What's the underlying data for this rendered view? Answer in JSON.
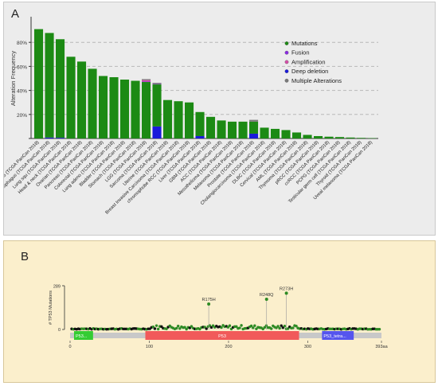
{
  "panel_a": {
    "letter": "A"
  },
  "panel_b": {
    "letter": "B"
  },
  "colors": {
    "mutation": "#1c8a14",
    "fusion": "#8a2be2",
    "amplification": "#d44fa8",
    "deep_deletion": "#1a1adb",
    "multiple": "#7a7a7a",
    "lollipop_green": "#2e8b24",
    "lollipop_black": "#111111",
    "domain_dbd": "#f15a5a",
    "domain_tad": "#33cc33",
    "domain_tetra": "#5555ee",
    "protein_bar": "#c8c8c8"
  },
  "chart_data": [
    {
      "type": "bar",
      "stacked": true,
      "ylabel": "Alteration Frequency",
      "xlabel": "",
      "ylim": [
        0,
        100
      ],
      "yticks": [
        0,
        20,
        40,
        60,
        80
      ],
      "ytick_labels": [
        "",
        "20%",
        "40%",
        "60%",
        "80%"
      ],
      "grid": "dashed horizontal",
      "legend_position": "right",
      "categories": [
        "Uterine CS (TCGA PanCan 2018)",
        "Esophagus (TCGA PanCan 2018)",
        "Lung squ (TCGA PanCan 2018)",
        "Head & neck (TCGA PanCan 2018)",
        "Ovarian (TCGA PanCan 2018)",
        "Pancreas (TCGA PanCan 2018)",
        "Colorectal (TCGA PanCan 2018)",
        "Lung adeno (TCGA PanCan 2018)",
        "Bladder (TCGA PanCan 2018)",
        "Stomach (TCGA PanCan 2018)",
        "LGG (TCGA PanCan 2018)",
        "Sarcoma (TCGA PanCan 2018)",
        "Uterine (TCGA PanCan 2018)",
        "Breast Invasive Carcinoma (TCGA PanCan 2018)",
        "chromophobe RCC (TCGA PanCan 2018)",
        "Liver (TCGA PanCan 2018)",
        "GBM (TCGA PanCan 2018)",
        "ACC (TCGA PanCan 2018)",
        "Mesothelioma (TCGA PanCan 2018)",
        "Melanoma (TCGA PanCan 2018)",
        "Prostate (TCGA PanCan 2018)",
        "Cholangiocarcinoma (TCGA PanCan 2018)",
        "DLBC (TCGA PanCan 2018)",
        "Cervical (TCGA PanCan 2018)",
        "AML (TCGA PanCan 2018)",
        "Thymoma (TCGA PanCan 2018)",
        "pRCC (TCGA PanCan 2018)",
        "ccRCC (TCGA PanCan 2018)",
        "PCPG (TCGA PanCan 2018)",
        "Testicular germ cell (TCGA PanCan 2018)",
        "Thyroid (TCGA PanCan 2018)",
        "Uveal melanoma (TCGA PanCan 2018)"
      ],
      "series": [
        {
          "name": "Mutations",
          "values": [
            91,
            87,
            82,
            68,
            64,
            58,
            52,
            51,
            49,
            48,
            47,
            35,
            32,
            31,
            30,
            20,
            18,
            15,
            14,
            14,
            10,
            9,
            8,
            7,
            5,
            3,
            2,
            1.5,
            1.2,
            0.8,
            0.5,
            0.3
          ]
        },
        {
          "name": "Fusion",
          "values": [
            0,
            0,
            0,
            0,
            0,
            0,
            0,
            0,
            0,
            0,
            0.4,
            0.3,
            0,
            0,
            0,
            0,
            0,
            0,
            0,
            0,
            0,
            0,
            0,
            0,
            0,
            0,
            0,
            0,
            0,
            0,
            0,
            0
          ]
        },
        {
          "name": "Amplification",
          "values": [
            0,
            0,
            0,
            0,
            0,
            0,
            0,
            0,
            0,
            0,
            1.2,
            0,
            0,
            0,
            0,
            0,
            0,
            0,
            0,
            0,
            0,
            0,
            0,
            0,
            0,
            0,
            0,
            0,
            0,
            0,
            0,
            0
          ]
        },
        {
          "name": "Deep deletion",
          "values": [
            0,
            0.8,
            0.6,
            0,
            0,
            0,
            0,
            0,
            0,
            0,
            0,
            10,
            0,
            0,
            0,
            2,
            0,
            0,
            0,
            0,
            4,
            0,
            0,
            0,
            0,
            0,
            0,
            0,
            0,
            0,
            0,
            0
          ]
        },
        {
          "name": "Multiple Alterations",
          "values": [
            0,
            0,
            0,
            0,
            0,
            0,
            0,
            0,
            0,
            0,
            0.8,
            1.0,
            0,
            0,
            0,
            0,
            0,
            0,
            0,
            0,
            1.5,
            0,
            0,
            0,
            0,
            0,
            0,
            0,
            0,
            0,
            0,
            0
          ]
        }
      ]
    },
    {
      "type": "scatter",
      "subtype": "lollipop",
      "ylabel": "# TP53 Mutations",
      "ylim": [
        0,
        289
      ],
      "yticks": [
        0,
        289
      ],
      "xlim": [
        0,
        393
      ],
      "xticks": [
        0,
        100,
        200,
        300,
        393
      ],
      "xtick_labels": [
        "0",
        "100",
        "200",
        "300",
        "393aa"
      ],
      "annotations": [
        {
          "label": "R175H",
          "x": 175,
          "y": 168
        },
        {
          "label": "R248Q",
          "x": 248,
          "y": 200
        },
        {
          "label": "R273H",
          "x": 273,
          "y": 240
        }
      ],
      "domains": [
        {
          "label": "P53...",
          "start": 5,
          "end": 29
        },
        {
          "label": "P53",
          "start": 95,
          "end": 289
        },
        {
          "label": "P53_tetra...",
          "start": 318,
          "end": 358
        }
      ]
    }
  ]
}
